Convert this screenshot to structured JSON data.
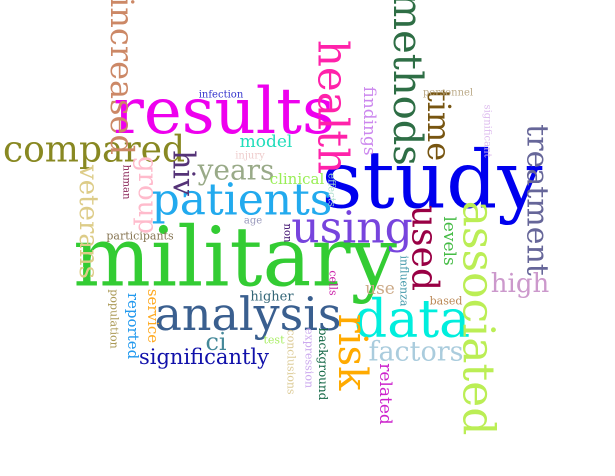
{
  "background": "#ffffff",
  "words": [
    {
      "text": "military",
      "color": "#33cc33",
      "weight": 1.0,
      "rotated": false
    },
    {
      "text": "study",
      "color": "#0000ee",
      "weight": 0.97,
      "rotated": false
    },
    {
      "text": "results",
      "color": "#ee00ee",
      "weight": 0.82,
      "rotated": false
    },
    {
      "text": "data",
      "color": "#00eedd",
      "weight": 0.66,
      "rotated": false
    },
    {
      "text": "analysis",
      "color": "#3a5f8f",
      "weight": 0.6,
      "rotated": false
    },
    {
      "text": "patients",
      "color": "#22aaee",
      "weight": 0.57,
      "rotated": false
    },
    {
      "text": "using",
      "color": "#7744dd",
      "weight": 0.57,
      "rotated": false
    },
    {
      "text": "associated",
      "color": "#bbee55",
      "weight": 0.55,
      "rotated": true
    },
    {
      "text": "health",
      "color": "#ff22aa",
      "weight": 0.5,
      "rotated": true
    },
    {
      "text": "methods",
      "color": "#2e6e45",
      "weight": 0.48,
      "rotated": true
    },
    {
      "text": "risk",
      "color": "#ffaa00",
      "weight": 0.47,
      "rotated": true
    },
    {
      "text": "compared",
      "color": "#888822",
      "weight": 0.42,
      "rotated": false
    },
    {
      "text": "used",
      "color": "#990044",
      "weight": 0.42,
      "rotated": true
    },
    {
      "text": "time",
      "color": "#775511",
      "weight": 0.37,
      "rotated": true
    },
    {
      "text": "increased",
      "color": "#cc8866",
      "weight": 0.37,
      "rotated": true
    },
    {
      "text": "treatment",
      "color": "#666699",
      "weight": 0.35,
      "rotated": true
    },
    {
      "text": "hiv",
      "color": "#553377",
      "weight": 0.35,
      "rotated": true
    },
    {
      "text": "years",
      "color": "#99aa88",
      "weight": 0.33,
      "rotated": false
    },
    {
      "text": "factors",
      "color": "#aaccdd",
      "weight": 0.32,
      "rotated": false
    },
    {
      "text": "veterans",
      "color": "#ddcc88",
      "weight": 0.32,
      "rotated": true
    },
    {
      "text": "high",
      "color": "#cc99cc",
      "weight": 0.3,
      "rotated": false
    },
    {
      "text": "group",
      "color": "#ffbbcc",
      "weight": 0.3,
      "rotated": true
    },
    {
      "text": "significantly",
      "color": "#1111aa",
      "weight": 0.27,
      "rotated": false
    },
    {
      "text": "ci",
      "color": "#448899",
      "weight": 0.26,
      "rotated": false
    },
    {
      "text": "findings",
      "color": "#cc88ee",
      "weight": 0.2,
      "rotated": true
    },
    {
      "text": "levels",
      "color": "#44bb44",
      "weight": 0.2,
      "rotated": true
    },
    {
      "text": "related",
      "color": "#cc22cc",
      "weight": 0.2,
      "rotated": true
    },
    {
      "text": "model",
      "color": "#22ddbb",
      "weight": 0.2,
      "rotated": false
    },
    {
      "text": "use",
      "color": "#ccaa88",
      "weight": 0.2,
      "rotated": false
    },
    {
      "text": "service",
      "color": "#ffaa22",
      "weight": 0.18,
      "rotated": true
    },
    {
      "text": "clinical",
      "color": "#99ee55",
      "weight": 0.17,
      "rotated": false
    },
    {
      "text": "reported",
      "color": "#2299ee",
      "weight": 0.17,
      "rotated": true
    },
    {
      "text": "higher",
      "color": "#336677",
      "weight": 0.15,
      "rotated": false
    },
    {
      "text": "background",
      "color": "#116644",
      "weight": 0.15,
      "rotated": true
    },
    {
      "text": "expression",
      "color": "#ccaaee",
      "weight": 0.14,
      "rotated": true
    },
    {
      "text": "conclusions",
      "color": "#ddcc99",
      "weight": 0.14,
      "rotated": true
    },
    {
      "text": "cells",
      "color": "#cc22aa",
      "weight": 0.14,
      "rotated": true
    },
    {
      "text": "influenza",
      "color": "#4499aa",
      "weight": 0.14,
      "rotated": true
    },
    {
      "text": "population",
      "color": "#aa9955",
      "weight": 0.14,
      "rotated": true
    },
    {
      "text": "participants",
      "color": "#887755",
      "weight": 0.13,
      "rotated": false
    },
    {
      "text": "based",
      "color": "#bb8855",
      "weight": 0.13,
      "rotated": false
    },
    {
      "text": "test",
      "color": "#aaee66",
      "weight": 0.13,
      "rotated": false
    },
    {
      "text": "human",
      "color": "#882255",
      "weight": 0.12,
      "rotated": true
    },
    {
      "text": "non",
      "color": "#330066",
      "weight": 0.12,
      "rotated": true
    },
    {
      "text": "infection",
      "color": "#3333cc",
      "weight": 0.11,
      "rotated": false
    },
    {
      "text": "effects",
      "color": "#aaddcc",
      "weight": 0.11,
      "rotated": true
    },
    {
      "text": "age",
      "color": "#9999bb",
      "weight": 0.11,
      "rotated": false
    },
    {
      "text": "personnel",
      "color": "#bbaa88",
      "weight": 0.11,
      "rotated": false
    },
    {
      "text": "significant",
      "color": "#ddbbee",
      "weight": 0.1,
      "rotated": true
    },
    {
      "text": "injury",
      "color": "#eecccc",
      "weight": 0.1,
      "rotated": false
    }
  ]
}
